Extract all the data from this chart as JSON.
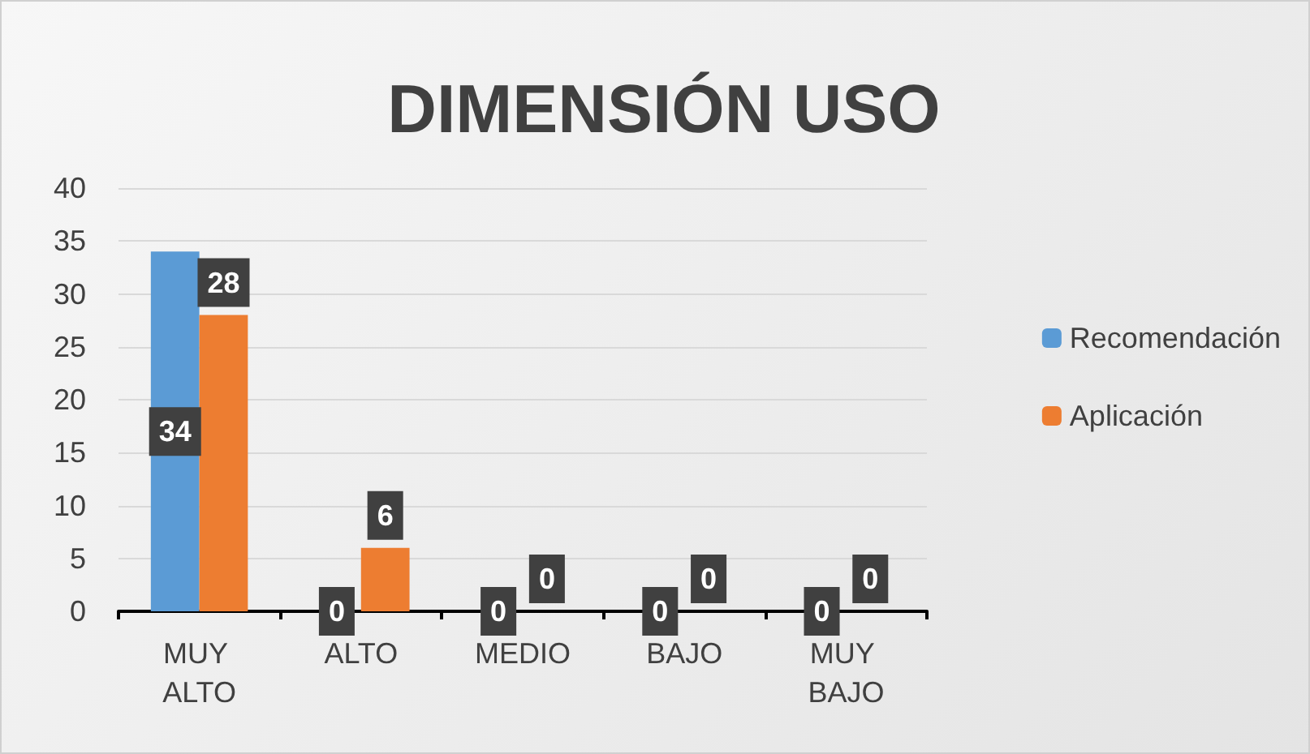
{
  "chart_data": {
    "type": "bar",
    "title": "DIMENSIÓN USO",
    "categories": [
      "MUY ALTO",
      "ALTO",
      "MEDIO",
      "BAJO",
      "MUY BAJO"
    ],
    "series": [
      {
        "name": "Recomendación",
        "color": "#5b9bd5",
        "values": [
          34,
          0,
          0,
          0,
          0
        ]
      },
      {
        "name": "Aplicación",
        "color": "#ed7d31",
        "values": [
          28,
          6,
          0,
          0,
          0
        ]
      }
    ],
    "ylim": [
      0,
      40
    ],
    "yticks": [
      0,
      5,
      10,
      15,
      20,
      25,
      30,
      35,
      40
    ],
    "grid": "y",
    "legend": "right",
    "data_labels": true
  }
}
